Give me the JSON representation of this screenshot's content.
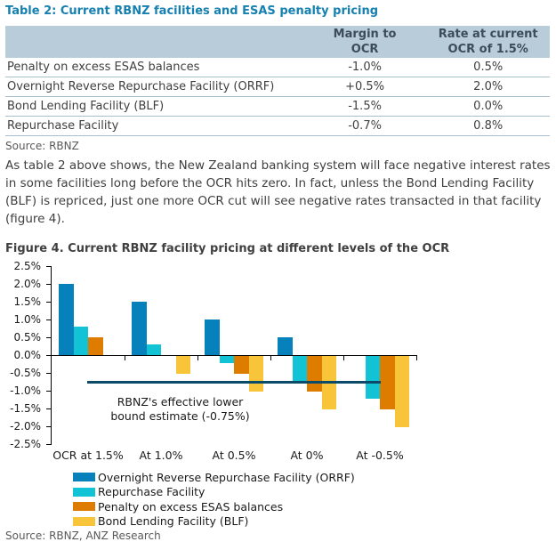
{
  "table": {
    "title": "Table 2: Current RBNZ facilities and ESAS penalty pricing",
    "header": {
      "col1": "",
      "col2": "Margin to\nOCR",
      "col3": "Rate at current\nOCR of 1.5%"
    },
    "rows": [
      {
        "label": "Penalty on excess ESAS balances",
        "margin": "-1.0%",
        "rate": "0.5%"
      },
      {
        "label": "Overnight Reverse Repurchase Facility (ORRF)",
        "margin": "+0.5%",
        "rate": "2.0%"
      },
      {
        "label": "Bond Lending Facility (BLF)",
        "margin": "-1.5%",
        "rate": "0.0%"
      },
      {
        "label": "Repurchase Facility",
        "margin": "-0.7%",
        "rate": "0.8%"
      }
    ],
    "source": "Source: RBNZ"
  },
  "paragraph": "As table 2 above shows, the New Zealand banking system will face negative interest rates in some facilities long before the OCR hits zero. In fact, unless the Bond Lending Facility (BLF) is repriced, just one more OCR cut will see negative rates transacted in that facility (figure 4).",
  "figure": {
    "title": "Figure 4. Current RBNZ facility pricing at different levels of the OCR",
    "source": "Source: RBNZ, ANZ Research"
  },
  "chart_data": {
    "type": "bar",
    "title": "Figure 4. Current RBNZ facility pricing at different levels of the OCR",
    "categories": [
      "OCR at 1.5%",
      "At 1.0%",
      "At 0.5%",
      "At 0%",
      "At -0.5%"
    ],
    "series": [
      {
        "name": "Overnight Reverse Repurchase Facility (ORRF)",
        "color": "#0681bc",
        "values": [
          2.0,
          1.5,
          1.0,
          0.5,
          0.0
        ]
      },
      {
        "name": "Repurchase Facility",
        "color": "#12c3d6",
        "values": [
          0.8,
          0.3,
          -0.2,
          -0.7,
          -1.2
        ]
      },
      {
        "name": "Penalty on excess ESAS balances",
        "color": "#de7c00",
        "values": [
          0.5,
          0.0,
          -0.5,
          -1.0,
          -1.5
        ]
      },
      {
        "name": "Bond Lending Facility (BLF)",
        "color": "#f8c43a",
        "values": [
          0.0,
          -0.5,
          -1.0,
          -1.5,
          -2.0
        ]
      }
    ],
    "y_ticks": [
      "2.5%",
      "2.0%",
      "1.5%",
      "1.0%",
      "0.5%",
      "0.0%",
      "-0.5%",
      "-1.0%",
      "-1.5%",
      "-2.0%",
      "-2.5%"
    ],
    "ylim": [
      -2.5,
      2.5
    ],
    "grid": false,
    "legend_position": "bottom-left",
    "annotation": {
      "lines": [
        "RBNZ's effective lower",
        "bound estimate (-0.75%)"
      ],
      "value": -0.75,
      "line_color": "#0b4a68"
    }
  }
}
